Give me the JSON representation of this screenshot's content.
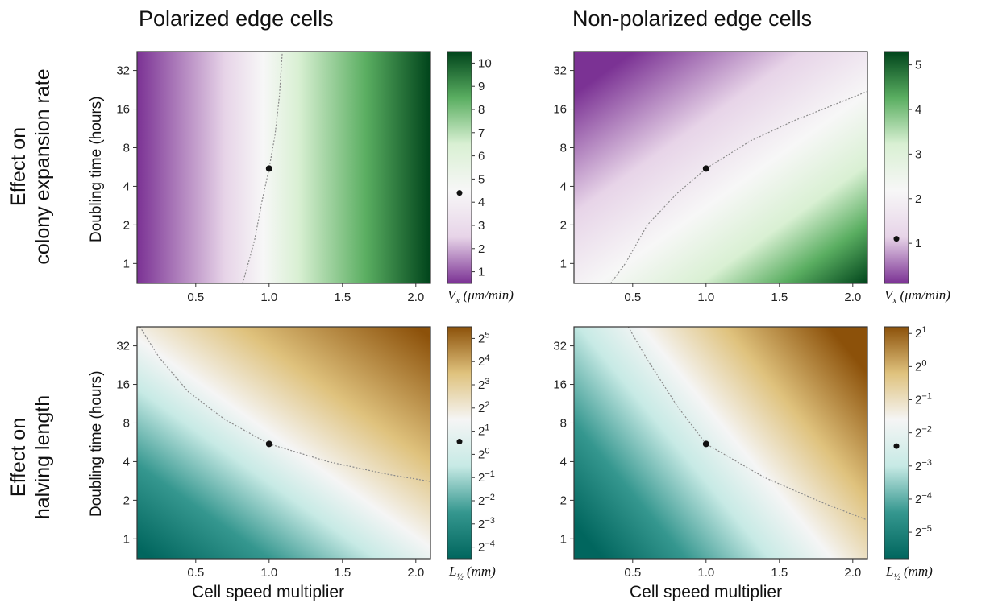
{
  "column_titles": [
    "Polarized edge cells",
    "Non-polarized edge cells"
  ],
  "row_titles": [
    [
      "Effect on",
      "colony expansion rate"
    ],
    [
      "Effect on",
      "halving length"
    ]
  ],
  "y_axis_label": "Doubling time (hours)",
  "x_axis_label": "Cell speed multiplier",
  "x_ticks": [
    "0.5",
    "1.0",
    "1.5",
    "2.0"
  ],
  "y_ticks": [
    "1",
    "2",
    "4",
    "8",
    "16",
    "32"
  ],
  "colors": {
    "purple_dark": "#7b3294",
    "purple_light": "#e7d4e8",
    "green_light": "#d9f0d3",
    "green_dark": "#00441b",
    "brown_dark": "#8c510a",
    "tan": "#dfc27d",
    "teal_light": "#c7eae5",
    "teal_dark": "#01665e"
  },
  "chart_data": [
    {
      "type": "heatmap",
      "panel": "top-left",
      "title": "Polarized edge cells",
      "xlabel": "",
      "ylabel": "Doubling time (hours)",
      "xlim": [
        0.1,
        2.1
      ],
      "ylim": [
        0.7,
        45
      ],
      "y_scale": "log2",
      "colormap": "purple-green",
      "colorbar_label": "V_x (μm/min)",
      "colorbar_label_parts": [
        "V",
        "x",
        " (μm/min)"
      ],
      "colorbar_range": [
        0.5,
        10.5
      ],
      "colorbar_ticks": [
        "1",
        "2",
        "3",
        "4",
        "5",
        "6",
        "7",
        "8",
        "9",
        "10"
      ],
      "colorbar_tick_values": [
        1,
        2,
        3,
        4,
        5,
        6,
        7,
        8,
        9,
        10
      ],
      "colorbar_marker": 4.4,
      "reference_point": {
        "x": 1.0,
        "y": 5.5
      },
      "contour": [
        [
          0.82,
          0.7
        ],
        [
          0.9,
          1.5
        ],
        [
          0.95,
          3
        ],
        [
          1.0,
          5.5
        ],
        [
          1.04,
          10
        ],
        [
          1.07,
          20
        ],
        [
          1.09,
          45
        ]
      ]
    },
    {
      "type": "heatmap",
      "panel": "top-right",
      "title": "Non-polarized edge cells",
      "xlabel": "",
      "ylabel": "",
      "xlim": [
        0.1,
        2.1
      ],
      "ylim": [
        0.7,
        45
      ],
      "y_scale": "log2",
      "colormap": "purple-green",
      "colorbar_label": "V_x (μm/min)",
      "colorbar_label_parts": [
        "V",
        "x",
        " (μm/min)"
      ],
      "colorbar_range": [
        0.1,
        5.3
      ],
      "colorbar_ticks": [
        "1",
        "2",
        "3",
        "4",
        "5"
      ],
      "colorbar_tick_values": [
        1,
        2,
        3,
        4,
        5
      ],
      "colorbar_marker": 1.1,
      "reference_point": {
        "x": 1.0,
        "y": 5.5
      },
      "contour": [
        [
          0.35,
          0.7
        ],
        [
          0.45,
          1
        ],
        [
          0.6,
          2
        ],
        [
          0.8,
          3.5
        ],
        [
          1.0,
          5.5
        ],
        [
          1.3,
          9
        ],
        [
          1.6,
          13
        ],
        [
          2.1,
          22
        ]
      ]
    },
    {
      "type": "heatmap",
      "panel": "bottom-left",
      "title": "",
      "xlabel": "Cell speed multiplier",
      "ylabel": "Doubling time (hours)",
      "xlim": [
        0.1,
        2.1
      ],
      "ylim": [
        0.7,
        45
      ],
      "y_scale": "log2",
      "colormap": "brown-teal",
      "colorbar_label": "L_1/2 (mm)",
      "colorbar_label_parts": [
        "L",
        "½",
        " (mm)"
      ],
      "colorbar_range": [
        -4.5,
        5.5
      ],
      "colorbar_ticks": [
        "2^-4",
        "2^-3",
        "2^-2",
        "2^-1",
        "2^0",
        "2^1",
        "2^2",
        "2^3",
        "2^4",
        "2^5"
      ],
      "colorbar_tick_values": [
        -4,
        -3,
        -2,
        -1,
        0,
        1,
        2,
        3,
        4,
        5
      ],
      "colorbar_marker": 0.55,
      "reference_point": {
        "x": 1.0,
        "y": 5.5
      },
      "contour": [
        [
          0.12,
          45
        ],
        [
          0.25,
          26
        ],
        [
          0.45,
          14
        ],
        [
          0.7,
          8.5
        ],
        [
          1.0,
          5.5
        ],
        [
          1.4,
          4
        ],
        [
          1.8,
          3.2
        ],
        [
          2.1,
          2.8
        ]
      ]
    },
    {
      "type": "heatmap",
      "panel": "bottom-right",
      "title": "",
      "xlabel": "Cell speed multiplier",
      "ylabel": "",
      "xlim": [
        0.1,
        2.1
      ],
      "ylim": [
        0.7,
        45
      ],
      "y_scale": "log2",
      "colormap": "brown-teal",
      "colorbar_label": "L_1/2 (mm)",
      "colorbar_label_parts": [
        "L",
        "½",
        " (mm)"
      ],
      "colorbar_range": [
        -5.8,
        1.2
      ],
      "colorbar_ticks": [
        "2^-5",
        "2^-4",
        "2^-3",
        "2^-2",
        "2^-1",
        "2^0",
        "2^1"
      ],
      "colorbar_tick_values": [
        -5,
        -4,
        -3,
        -2,
        -1,
        0,
        1
      ],
      "colorbar_marker": -2.4,
      "reference_point": {
        "x": 1.0,
        "y": 5.5
      },
      "contour": [
        [
          0.47,
          45
        ],
        [
          0.6,
          25
        ],
        [
          0.8,
          11
        ],
        [
          1.0,
          5.5
        ],
        [
          1.4,
          3
        ],
        [
          1.8,
          1.9
        ],
        [
          2.1,
          1.4
        ]
      ]
    }
  ]
}
